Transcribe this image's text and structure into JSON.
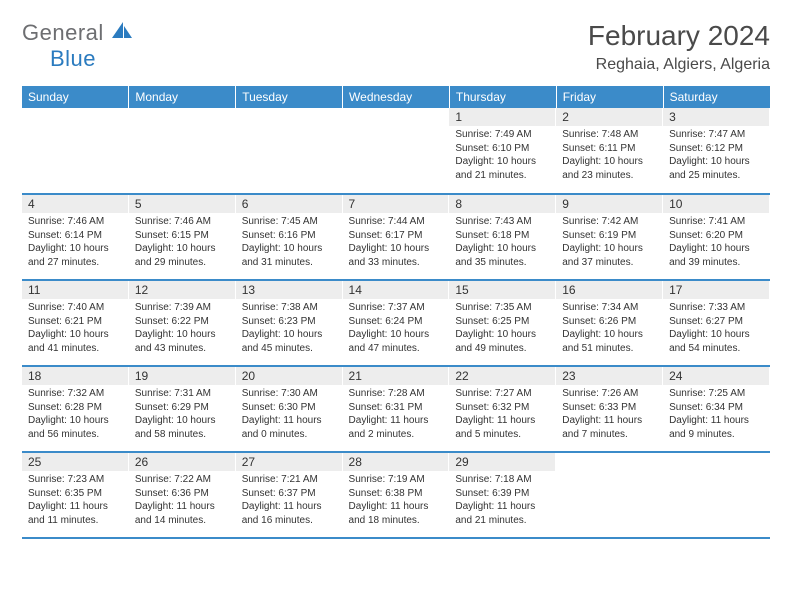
{
  "logo": {
    "text_general": "General",
    "text_blue": "Blue",
    "icon_color": "#2b7bbf"
  },
  "title": "February 2024",
  "location": "Reghaia, Algiers, Algeria",
  "header_bg": "#3b8bc9",
  "header_text_color": "#ffffff",
  "daynum_bg": "#ededed",
  "border_color": "#3b8bc9",
  "text_color": "#333333",
  "days_of_week": [
    "Sunday",
    "Monday",
    "Tuesday",
    "Wednesday",
    "Thursday",
    "Friday",
    "Saturday"
  ],
  "first_weekday_index": 4,
  "num_days": 29,
  "days": {
    "1": {
      "sunrise": "7:49 AM",
      "sunset": "6:10 PM",
      "daylight": "10 hours and 21 minutes."
    },
    "2": {
      "sunrise": "7:48 AM",
      "sunset": "6:11 PM",
      "daylight": "10 hours and 23 minutes."
    },
    "3": {
      "sunrise": "7:47 AM",
      "sunset": "6:12 PM",
      "daylight": "10 hours and 25 minutes."
    },
    "4": {
      "sunrise": "7:46 AM",
      "sunset": "6:14 PM",
      "daylight": "10 hours and 27 minutes."
    },
    "5": {
      "sunrise": "7:46 AM",
      "sunset": "6:15 PM",
      "daylight": "10 hours and 29 minutes."
    },
    "6": {
      "sunrise": "7:45 AM",
      "sunset": "6:16 PM",
      "daylight": "10 hours and 31 minutes."
    },
    "7": {
      "sunrise": "7:44 AM",
      "sunset": "6:17 PM",
      "daylight": "10 hours and 33 minutes."
    },
    "8": {
      "sunrise": "7:43 AM",
      "sunset": "6:18 PM",
      "daylight": "10 hours and 35 minutes."
    },
    "9": {
      "sunrise": "7:42 AM",
      "sunset": "6:19 PM",
      "daylight": "10 hours and 37 minutes."
    },
    "10": {
      "sunrise": "7:41 AM",
      "sunset": "6:20 PM",
      "daylight": "10 hours and 39 minutes."
    },
    "11": {
      "sunrise": "7:40 AM",
      "sunset": "6:21 PM",
      "daylight": "10 hours and 41 minutes."
    },
    "12": {
      "sunrise": "7:39 AM",
      "sunset": "6:22 PM",
      "daylight": "10 hours and 43 minutes."
    },
    "13": {
      "sunrise": "7:38 AM",
      "sunset": "6:23 PM",
      "daylight": "10 hours and 45 minutes."
    },
    "14": {
      "sunrise": "7:37 AM",
      "sunset": "6:24 PM",
      "daylight": "10 hours and 47 minutes."
    },
    "15": {
      "sunrise": "7:35 AM",
      "sunset": "6:25 PM",
      "daylight": "10 hours and 49 minutes."
    },
    "16": {
      "sunrise": "7:34 AM",
      "sunset": "6:26 PM",
      "daylight": "10 hours and 51 minutes."
    },
    "17": {
      "sunrise": "7:33 AM",
      "sunset": "6:27 PM",
      "daylight": "10 hours and 54 minutes."
    },
    "18": {
      "sunrise": "7:32 AM",
      "sunset": "6:28 PM",
      "daylight": "10 hours and 56 minutes."
    },
    "19": {
      "sunrise": "7:31 AM",
      "sunset": "6:29 PM",
      "daylight": "10 hours and 58 minutes."
    },
    "20": {
      "sunrise": "7:30 AM",
      "sunset": "6:30 PM",
      "daylight": "11 hours and 0 minutes."
    },
    "21": {
      "sunrise": "7:28 AM",
      "sunset": "6:31 PM",
      "daylight": "11 hours and 2 minutes."
    },
    "22": {
      "sunrise": "7:27 AM",
      "sunset": "6:32 PM",
      "daylight": "11 hours and 5 minutes."
    },
    "23": {
      "sunrise": "7:26 AM",
      "sunset": "6:33 PM",
      "daylight": "11 hours and 7 minutes."
    },
    "24": {
      "sunrise": "7:25 AM",
      "sunset": "6:34 PM",
      "daylight": "11 hours and 9 minutes."
    },
    "25": {
      "sunrise": "7:23 AM",
      "sunset": "6:35 PM",
      "daylight": "11 hours and 11 minutes."
    },
    "26": {
      "sunrise": "7:22 AM",
      "sunset": "6:36 PM",
      "daylight": "11 hours and 14 minutes."
    },
    "27": {
      "sunrise": "7:21 AM",
      "sunset": "6:37 PM",
      "daylight": "11 hours and 16 minutes."
    },
    "28": {
      "sunrise": "7:19 AM",
      "sunset": "6:38 PM",
      "daylight": "11 hours and 18 minutes."
    },
    "29": {
      "sunrise": "7:18 AM",
      "sunset": "6:39 PM",
      "daylight": "11 hours and 21 minutes."
    }
  },
  "labels": {
    "sunrise": "Sunrise:",
    "sunset": "Sunset:",
    "daylight": "Daylight:"
  }
}
